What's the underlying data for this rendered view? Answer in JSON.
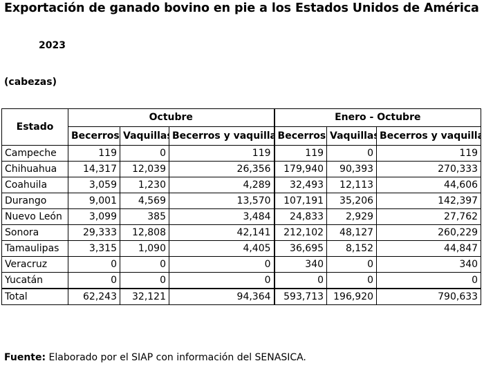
{
  "title": "Exportación de ganado bovino en pie a los Estados Unidos de América",
  "year": "2023",
  "units": "(cabezas)",
  "table": {
    "estado_header": "Estado",
    "groups": [
      "Octubre",
      "Enero - Octubre"
    ],
    "subheaders": [
      "Becerros",
      "Vaquillas",
      "Becerros y vaquillas",
      "Becerros",
      "Vaquillas",
      "Becerros y vaquillas"
    ],
    "rows": [
      [
        "Campeche",
        "119",
        "0",
        "119",
        "119",
        "0",
        "119"
      ],
      [
        "Chihuahua",
        "14,317",
        "12,039",
        "26,356",
        "179,940",
        "90,393",
        "270,333"
      ],
      [
        "Coahuila",
        "3,059",
        "1,230",
        "4,289",
        "32,493",
        "12,113",
        "44,606"
      ],
      [
        "Durango",
        "9,001",
        "4,569",
        "13,570",
        "107,191",
        "35,206",
        "142,397"
      ],
      [
        "Nuevo León",
        "3,099",
        "385",
        "3,484",
        "24,833",
        "2,929",
        "27,762"
      ],
      [
        "Sonora",
        "29,333",
        "12,808",
        "42,141",
        "212,102",
        "48,127",
        "260,229"
      ],
      [
        "Tamaulipas",
        "3,315",
        "1,090",
        "4,405",
        "36,695",
        "8,152",
        "44,847"
      ],
      [
        "Veracruz",
        "0",
        "0",
        "0",
        "340",
        "0",
        "340"
      ],
      [
        "Yucatán",
        "0",
        "0",
        "0",
        "0",
        "0",
        "0"
      ]
    ],
    "total": [
      "Total",
      "62,243",
      "32,121",
      "94,364",
      "593,713",
      "196,920",
      "790,633"
    ]
  },
  "source": {
    "label": "Fuente:",
    "text": "Elaborado por el SIAP con información del SENASICA."
  }
}
